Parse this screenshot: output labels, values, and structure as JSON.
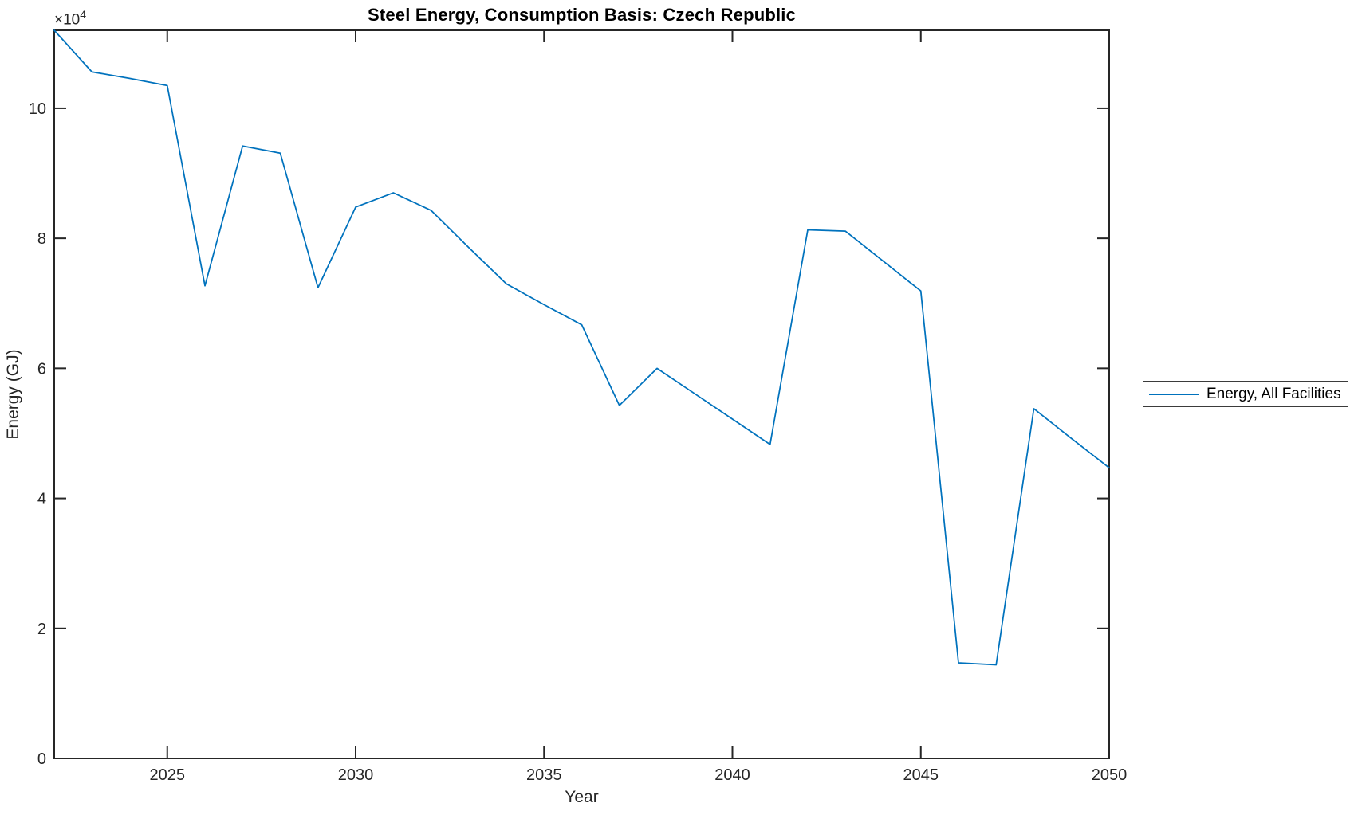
{
  "figure": {
    "y_multiplier_base": "×10",
    "y_multiplier_exponent": "4"
  },
  "chart_data": {
    "type": "line",
    "title": "Steel Energy, Consumption Basis: Czech Republic",
    "xlabel": "Year",
    "ylabel": "Energy (GJ)",
    "x": [
      2022,
      2023,
      2024,
      2025,
      2026,
      2027,
      2028,
      2029,
      2030,
      2031,
      2032,
      2033,
      2034,
      2035,
      2036,
      2037,
      2038,
      2039,
      2040,
      2041,
      2042,
      2043,
      2044,
      2045,
      2046,
      2047,
      2048,
      2049,
      2050
    ],
    "series": [
      {
        "name": "Energy, All Facilities",
        "values": [
          112000,
          105600,
          104600,
          103500,
          72700,
          94200,
          93100,
          72400,
          84800,
          87000,
          84300,
          78600,
          73000,
          69800,
          66700,
          54300,
          60000,
          56100,
          52200,
          48300,
          81300,
          81100,
          76500,
          71900,
          14700,
          14400,
          53800,
          49200,
          44700
        ]
      }
    ],
    "xlim": [
      2022,
      2050
    ],
    "ylim": [
      0,
      112000
    ],
    "x_ticks": [
      2025,
      2030,
      2035,
      2040,
      2045,
      2050
    ],
    "x_tick_labels": [
      "2025",
      "2030",
      "2035",
      "2040",
      "2045",
      "2050"
    ],
    "y_ticks": [
      0,
      20000,
      40000,
      60000,
      80000,
      100000
    ],
    "y_tick_labels": [
      "0",
      "2",
      "4",
      "6",
      "8",
      "10"
    ],
    "y_axis_multiplier": "×10^4",
    "grid": false,
    "legend_position": "right-outside",
    "line_color": "#0072BD",
    "axis_color": "#262626",
    "tick_label_color": "#262626"
  }
}
